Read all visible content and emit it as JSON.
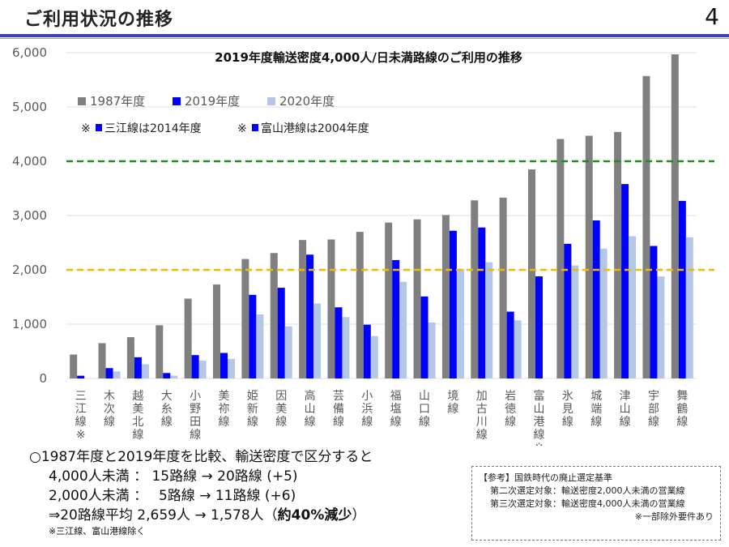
{
  "header": {
    "title": "ご利用状況の推移",
    "page_number": "4"
  },
  "chart_data": {
    "type": "bar",
    "title": "2019年度輸送密度4,000人/日未満路線のご利用の推移",
    "xlabel": "",
    "ylabel": "",
    "ylim": [
      0,
      6000
    ],
    "yticks": [
      0,
      1000,
      2000,
      3000,
      4000,
      5000,
      6000
    ],
    "ytick_labels": [
      "0",
      "1,000",
      "2,000",
      "3,000",
      "4,000",
      "5,000",
      "6,000"
    ],
    "grid": true,
    "legend_position": "top-left",
    "categories": [
      "三江線※",
      "木次線",
      "越美北線",
      "大糸線",
      "小野田線",
      "美祢線",
      "姫新線",
      "因美線",
      "高山線",
      "芸備線",
      "小浜線",
      "福塩線",
      "山口線",
      "境線",
      "加古川線",
      "岩徳線",
      "富山港線※",
      "氷見線",
      "城端線",
      "津山線",
      "宇部線",
      "舞鶴線"
    ],
    "series": [
      {
        "name": "1987年度",
        "color": "#808080",
        "values": [
          440,
          650,
          760,
          980,
          1470,
          1730,
          2200,
          2310,
          2550,
          2560,
          2700,
          2870,
          2930,
          3010,
          3280,
          3330,
          3850,
          4410,
          4470,
          4540,
          5570,
          5970
        ]
      },
      {
        "name": "2019年度",
        "color": "#0000ff",
        "values": [
          50,
          190,
          390,
          100,
          430,
          470,
          1540,
          1670,
          2280,
          1310,
          990,
          2180,
          1510,
          2720,
          2780,
          1230,
          1880,
          2480,
          2910,
          3580,
          2440,
          3270
        ]
      },
      {
        "name": "2020年度",
        "color": "#b4c7e7",
        "values": [
          0,
          130,
          260,
          50,
          330,
          360,
          1180,
          960,
          1380,
          1130,
          780,
          1780,
          1030,
          2020,
          2140,
          1070,
          0,
          2080,
          2390,
          2620,
          1880,
          2600
        ]
      }
    ],
    "reference_lines": [
      {
        "value": 4000,
        "color": "#228b22",
        "style": "dashed"
      },
      {
        "value": 2000,
        "color": "#f5b800",
        "style": "dashed"
      }
    ],
    "notes": [
      {
        "mark": "※",
        "color": "#0000ff",
        "text": "三江線は2014年度"
      },
      {
        "mark": "※",
        "color": "#0000ff",
        "text": "富山港線は2004年度"
      }
    ]
  },
  "summary": {
    "line1": "○1987年度と2019年度を比較、輸送密度で区分すると",
    "line2": "4,000人未満 ： 15路線 → 20路線 (+5)",
    "line3": "2,000人未満 ：　 5路線 → 11路線 (+6)",
    "line4_prefix": "⇒20路線平均  2,659人 → 1,578人（",
    "line4_bold": "約40%減少",
    "line4_suffix": "）",
    "footnote": "※三江線、富山港線除く"
  },
  "reference_box": {
    "title": "【参考】国鉄時代の廃止選定基準",
    "line1": "第二次選定対象：輸送密度2,000人未満の営業線",
    "line2": "第三次選定対象：輸送密度4,000人未満の営業線",
    "note": "※一部除外要件あり"
  }
}
